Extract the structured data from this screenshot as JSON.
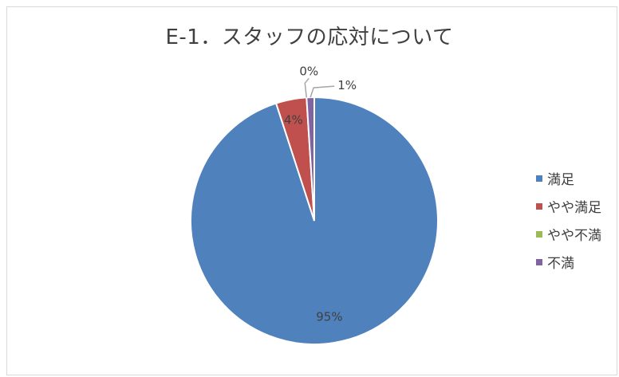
{
  "chart_data": {
    "type": "pie",
    "title": "E-1．スタッフの応対について",
    "categories": [
      "満足",
      "やや満足",
      "やや不満",
      "不満"
    ],
    "values": [
      95,
      4,
      0,
      1
    ],
    "data_labels": [
      "95%",
      "4%",
      "0%",
      "1%"
    ],
    "colors": [
      "#4f81bd",
      "#c0504d",
      "#9bbb59",
      "#8064a2"
    ],
    "legend_position": "right",
    "start_angle": "12 o'clock",
    "direction": "clockwise"
  }
}
